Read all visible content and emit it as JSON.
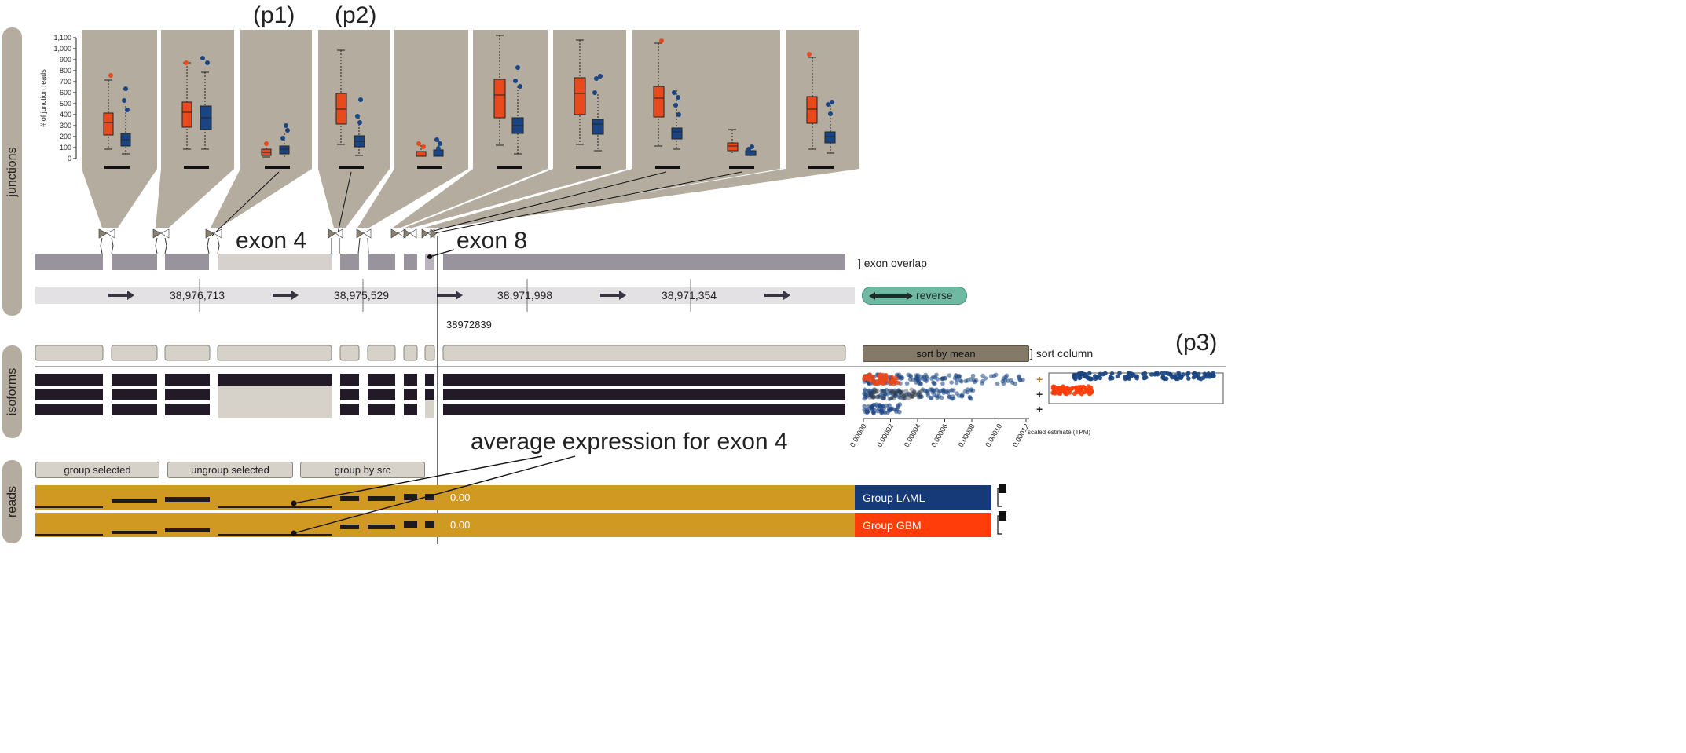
{
  "sections": {
    "junctions": "junctions",
    "isoforms": "isoforms",
    "reads": "reads"
  },
  "annotations": {
    "p1": "(p1)",
    "p2": "(p2)",
    "p3": "(p3)",
    "exon4": "exon 4",
    "exon8": "exon 8",
    "average_expression": "average expression for exon 4"
  },
  "junction_chart": {
    "ylabel": "# of junction reads",
    "yticks": [
      "0",
      "100",
      "200",
      "300",
      "400",
      "500",
      "600",
      "700",
      "800",
      "900",
      "1,000",
      "1,100"
    ],
    "colors": {
      "group1": "#e8491d",
      "group2": "#1a4582",
      "panel": "#b3ac9f"
    }
  },
  "exon_overlap_label": "] exon overlap",
  "positions": [
    "38,976,713",
    "38,975,529",
    "38,971,998",
    "38,971,354"
  ],
  "reverse_button": "reverse",
  "cursor_position": "38972839",
  "sort_button": "sort by mean",
  "sort_column_label": "] sort column",
  "scatter": {
    "xlabel": "scaled estimate (TPM)",
    "xticks": [
      "0.00000",
      "0.00002",
      "0.00004",
      "0.00006",
      "0.00008",
      "0.00010",
      "0.00012"
    ],
    "row_markers": [
      "+",
      "+",
      "+"
    ]
  },
  "reads": {
    "buttons": {
      "group_selected": "group selected",
      "ungroup_selected": "ungroup selected",
      "group_by_src": "group by src"
    },
    "rows": [
      {
        "value": "0.00",
        "group": "Group LAML",
        "color": "#163a78"
      },
      {
        "value": "0.00",
        "group": "Group GBM",
        "color": "#ff3d0a"
      }
    ]
  }
}
